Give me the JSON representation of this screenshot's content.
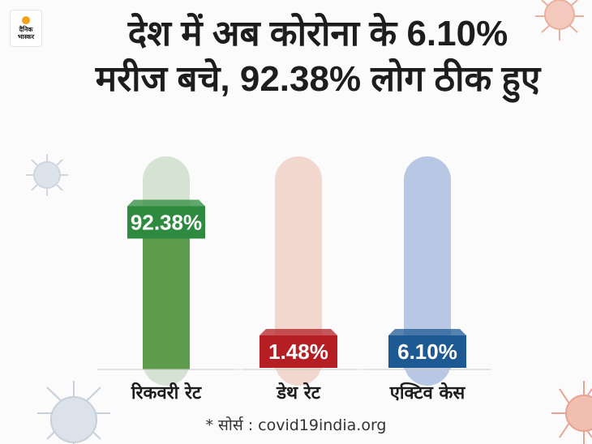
{
  "logo": {
    "line1": "दैनिक",
    "line2": "भास्कर"
  },
  "title": {
    "line1": "देश में अब कोरोना के 6.10%",
    "line2": "मरीज बचे, 92.38% लोग ठीक हुए"
  },
  "source": "* सोर्स : covid19india.org",
  "colors": {
    "recovery": "#2d8a3e",
    "recovery_track": "#d5e3d2",
    "recovery_fill": "#5c9c4c",
    "death": "#b51f24",
    "death_track": "#f1d7ce",
    "active": "#1d5a94",
    "active_track": "#b8c8e4"
  },
  "chart_data": {
    "type": "bar",
    "categories": [
      "रिकवरी रेट",
      "डेथ रेट",
      "एक्टिव केस"
    ],
    "values": [
      92.38,
      1.48,
      6.1
    ],
    "value_labels": [
      "92.38%",
      "1.48%",
      "6.10%"
    ],
    "ylim": [
      0,
      100
    ],
    "grid": false,
    "legend": "none"
  }
}
